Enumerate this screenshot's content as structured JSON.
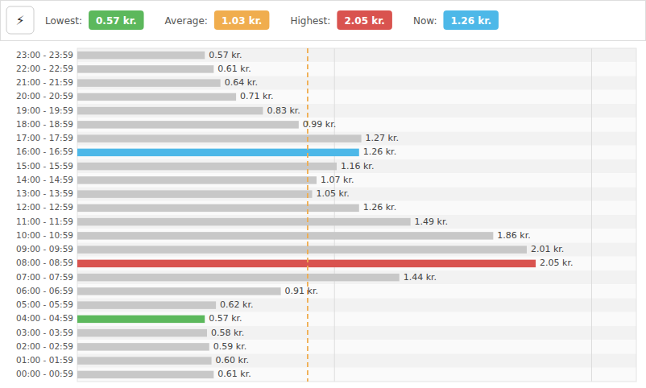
{
  "chart_data": {
    "type": "bar",
    "orientation": "horizontal",
    "icon": "⚡",
    "annotations": [
      {
        "label": "Lowest:",
        "value": 0.57,
        "value_label": "0.57 kr.",
        "color": "#5cb85c"
      },
      {
        "label": "Average:",
        "value": 1.03,
        "value_label": "1.03 kr.",
        "color": "#f0ad4e"
      },
      {
        "label": "Highest:",
        "value": 2.05,
        "value_label": "2.05 kr.",
        "color": "#d9534f"
      },
      {
        "label": "Now:",
        "value": 1.26,
        "value_label": "1.26 kr.",
        "color": "#4db8e8"
      }
    ],
    "categories": [
      "23:00 - 23:59",
      "22:00 - 22:59",
      "21:00 - 21:59",
      "20:00 - 20:59",
      "19:00 - 19:59",
      "18:00 - 18:59",
      "17:00 - 17:59",
      "16:00 - 16:59",
      "15:00 - 15:59",
      "14:00 - 14:59",
      "13:00 - 13:59",
      "12:00 - 12:59",
      "11:00 - 11:59",
      "10:00 - 10:59",
      "09:00 - 09:59",
      "08:00 - 08:59",
      "07:00 - 07:59",
      "06:00 - 06:59",
      "05:00 - 05:59",
      "04:00 - 04:59",
      "03:00 - 03:59",
      "02:00 - 02:59",
      "01:00 - 01:59",
      "00:00 - 00:59"
    ],
    "values": [
      0.57,
      0.61,
      0.64,
      0.71,
      0.83,
      0.99,
      1.27,
      1.26,
      1.16,
      1.07,
      1.05,
      1.26,
      1.49,
      1.86,
      2.01,
      2.05,
      1.44,
      0.91,
      0.62,
      0.57,
      0.58,
      0.59,
      0.6,
      0.61
    ],
    "value_labels": [
      "0.57 kr.",
      "0.61 kr.",
      "0.64 kr.",
      "0.71 kr.",
      "0.83 kr.",
      "0.99 kr.",
      "1.27 kr.",
      "1.26 kr.",
      "1.16 kr.",
      "1.07 kr.",
      "1.05 kr.",
      "1.26 kr.",
      "1.49 kr.",
      "1.86 kr.",
      "2.01 kr.",
      "2.05 kr.",
      "1.44 kr.",
      "0.91 kr.",
      "0.62 kr.",
      "0.57 kr.",
      "0.58 kr.",
      "0.59 kr.",
      "0.60 kr.",
      "0.61 kr."
    ],
    "data_labels": true,
    "colors": [
      "#c8c8c8",
      "#c8c8c8",
      "#c8c8c8",
      "#c8c8c8",
      "#c8c8c8",
      "#c8c8c8",
      "#c8c8c8",
      "#4db8e8",
      "#c8c8c8",
      "#c8c8c8",
      "#c8c8c8",
      "#c8c8c8",
      "#c8c8c8",
      "#c8c8c8",
      "#c8c8c8",
      "#d9534f",
      "#c8c8c8",
      "#c8c8c8",
      "#c8c8c8",
      "#5cb85c",
      "#c8c8c8",
      "#c8c8c8",
      "#c8c8c8",
      "#c8c8c8"
    ],
    "average_line": {
      "value": 1.03,
      "color": "#f0ad4e",
      "line_style": "dashed"
    },
    "xlim": [
      0,
      2.5
    ],
    "xticks": [
      1.15,
      2.3
    ],
    "grid": true,
    "tick_labels": "y"
  }
}
